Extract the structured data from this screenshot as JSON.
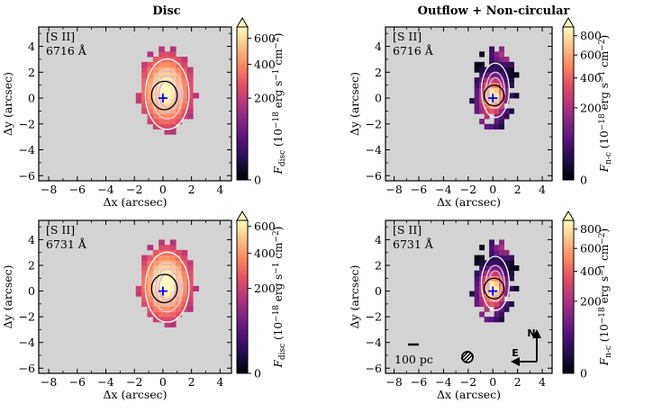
{
  "chart_data": [
    {
      "type": "heatmap",
      "title": "Disc",
      "xlabel": "Δx (arcsec)",
      "ylabel": "Δy (arcsec)",
      "xlim": [
        -8.7,
        4.8
      ],
      "ylim": [
        -6.4,
        5.5
      ],
      "xticks": [
        -8,
        -6,
        -4,
        -2,
        0,
        2,
        4
      ],
      "yticks": [
        -6,
        -4,
        -2,
        0,
        2,
        4
      ],
      "line_label": "[S II]",
      "wavelength_label": "6716 Å",
      "colorbar": {
        "label": "F_disc (10^-18 erg s^-1 cm^-2)",
        "label_main": "F",
        "label_sub": "disc",
        "label_rest": " (10",
        "label_exp": "−18",
        "label_unit": " erg s",
        "label_exp2": "−1",
        "label_cm": " cm",
        "label_exp3": "−2",
        "label_end": ")",
        "max": 700,
        "ticks": [
          0,
          200,
          400,
          600
        ],
        "extend": "max"
      },
      "emission": {
        "center": [
          0.2,
          0.6
        ],
        "sigma_x": 1.9,
        "sigma_y": 3.0,
        "peak": 720
      },
      "nucleus_marker": [
        0,
        0
      ]
    },
    {
      "type": "heatmap",
      "title": "Outflow + Non-circular",
      "xlabel": "Δx (arcsec)",
      "ylabel": "Δy (arcsec)",
      "xlim": [
        -8.7,
        4.8
      ],
      "ylim": [
        -6.4,
        5.5
      ],
      "xticks": [
        -8,
        -6,
        -4,
        -2,
        0,
        2,
        4
      ],
      "yticks": [
        -6,
        -4,
        -2,
        0,
        2,
        4
      ],
      "line_label": "[S II]",
      "wavelength_label": "6716 Å",
      "colorbar": {
        "label": "F_n-c (10^-18 erg s^-1 cm^-2)",
        "label_main": "F",
        "label_sub": "n-c",
        "label_rest": " (10",
        "label_exp": "−18",
        "label_unit": " erg s",
        "label_exp2": "−1",
        "label_cm": " cm",
        "label_exp3": "−2",
        "label_end": ")",
        "max": 900,
        "ticks": [
          200,
          400,
          600,
          800
        ],
        "extend": "max"
      },
      "emission": {
        "center": [
          0.0,
          0.2
        ],
        "sigma_x": 0.9,
        "sigma_y": 1.2,
        "peak": 950
      },
      "nucleus_marker": [
        0,
        0
      ]
    },
    {
      "type": "heatmap",
      "title": "",
      "xlabel": "Δx (arcsec)",
      "ylabel": "Δy (arcsec)",
      "xlim": [
        -8.7,
        4.8
      ],
      "ylim": [
        -6.4,
        5.5
      ],
      "xticks": [
        -8,
        -6,
        -4,
        -2,
        0,
        2,
        4
      ],
      "yticks": [
        -6,
        -4,
        -2,
        0,
        2,
        4
      ],
      "line_label": "[S II]",
      "wavelength_label": "6731 Å",
      "colorbar": {
        "label": "F_disc (10^-18 erg s^-1 cm^-2)",
        "label_main": "F",
        "label_sub": "disc",
        "label_rest": " (10",
        "label_exp": "−18",
        "label_unit": " erg s",
        "label_exp2": "−1",
        "label_cm": " cm",
        "label_exp3": "−2",
        "label_end": ")",
        "max": 650,
        "ticks": [
          0,
          200,
          400,
          600
        ],
        "extend": "max"
      },
      "emission": {
        "center": [
          0.2,
          0.6
        ],
        "sigma_x": 1.9,
        "sigma_y": 3.0,
        "peak": 680
      },
      "nucleus_marker": [
        0,
        0
      ]
    },
    {
      "type": "heatmap",
      "title": "",
      "xlabel": "Δx (arcsec)",
      "ylabel": "Δy (arcsec)",
      "xlim": [
        -8.7,
        4.8
      ],
      "ylim": [
        -6.4,
        5.5
      ],
      "xticks": [
        -8,
        -6,
        -4,
        -2,
        0,
        2,
        4
      ],
      "yticks": [
        -6,
        -4,
        -2,
        0,
        2,
        4
      ],
      "line_label": "[S II]",
      "wavelength_label": "6731 Å",
      "colorbar": {
        "label": "F_n-c (10^-18 erg s^-1 cm^-2)",
        "label_main": "F",
        "label_sub": "n-c",
        "label_rest": " (10",
        "label_exp": "−18",
        "label_unit": " erg s",
        "label_exp2": "−1",
        "label_cm": " cm",
        "label_exp3": "−2",
        "label_end": ")",
        "max": 900,
        "ticks": [
          200,
          400,
          600,
          800
        ],
        "extend": "max"
      },
      "emission": {
        "center": [
          0.0,
          0.2
        ],
        "sigma_x": 0.9,
        "sigma_y": 1.2,
        "peak": 950
      },
      "nucleus_marker": [
        0,
        0
      ],
      "scale_bar_label": "100 pc",
      "compass": {
        "north": "N",
        "east": "E"
      }
    }
  ],
  "colors": {
    "background_gray": "#d3d3d3",
    "marker_blue": "#0000ff",
    "colormap": [
      "#000004",
      "#1c1044",
      "#4f127b",
      "#812581",
      "#b5367a",
      "#e55064",
      "#fb8761",
      "#fec287",
      "#fcfdbf"
    ]
  }
}
